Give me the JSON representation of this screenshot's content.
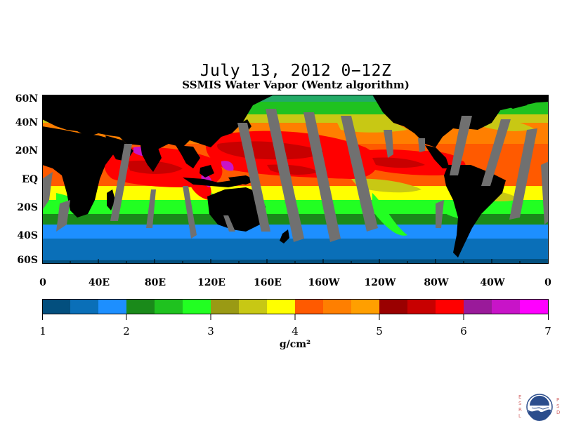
{
  "title": "July 13, 2012 0−12Z",
  "subtitle": "SSMIS Water Vapor (Wentz algorithm)",
  "latitude_labels": [
    "60N",
    "40N",
    "20N",
    "EQ",
    "20S",
    "40S",
    "60S"
  ],
  "longitude_labels": [
    "0",
    "40E",
    "80E",
    "120E",
    "160E",
    "160W",
    "120W",
    "80W",
    "40W",
    "0"
  ],
  "colorbar": {
    "labels": [
      "1",
      "2",
      "3",
      "4",
      "5",
      "6",
      "7"
    ],
    "units": "g/cm²",
    "colors": [
      "#034f7e",
      "#0a6fb8",
      "#1d8fff",
      "#1a8a1a",
      "#1fc21f",
      "#22ff22",
      "#9a9a14",
      "#c8c814",
      "#ffff00",
      "#ff5a00",
      "#ff7f00",
      "#ff9f00",
      "#9a0000",
      "#c80000",
      "#ff0000",
      "#9a1a9a",
      "#c814c8",
      "#ff00ff"
    ]
  },
  "map_colors": {
    "land": "#000000",
    "data_gap": "#707070"
  },
  "logo": {
    "name": "noaa-logo",
    "left_letters": [
      "E",
      "S",
      "R",
      "L"
    ],
    "right_letters": [
      "P",
      "S",
      "D"
    ]
  }
}
